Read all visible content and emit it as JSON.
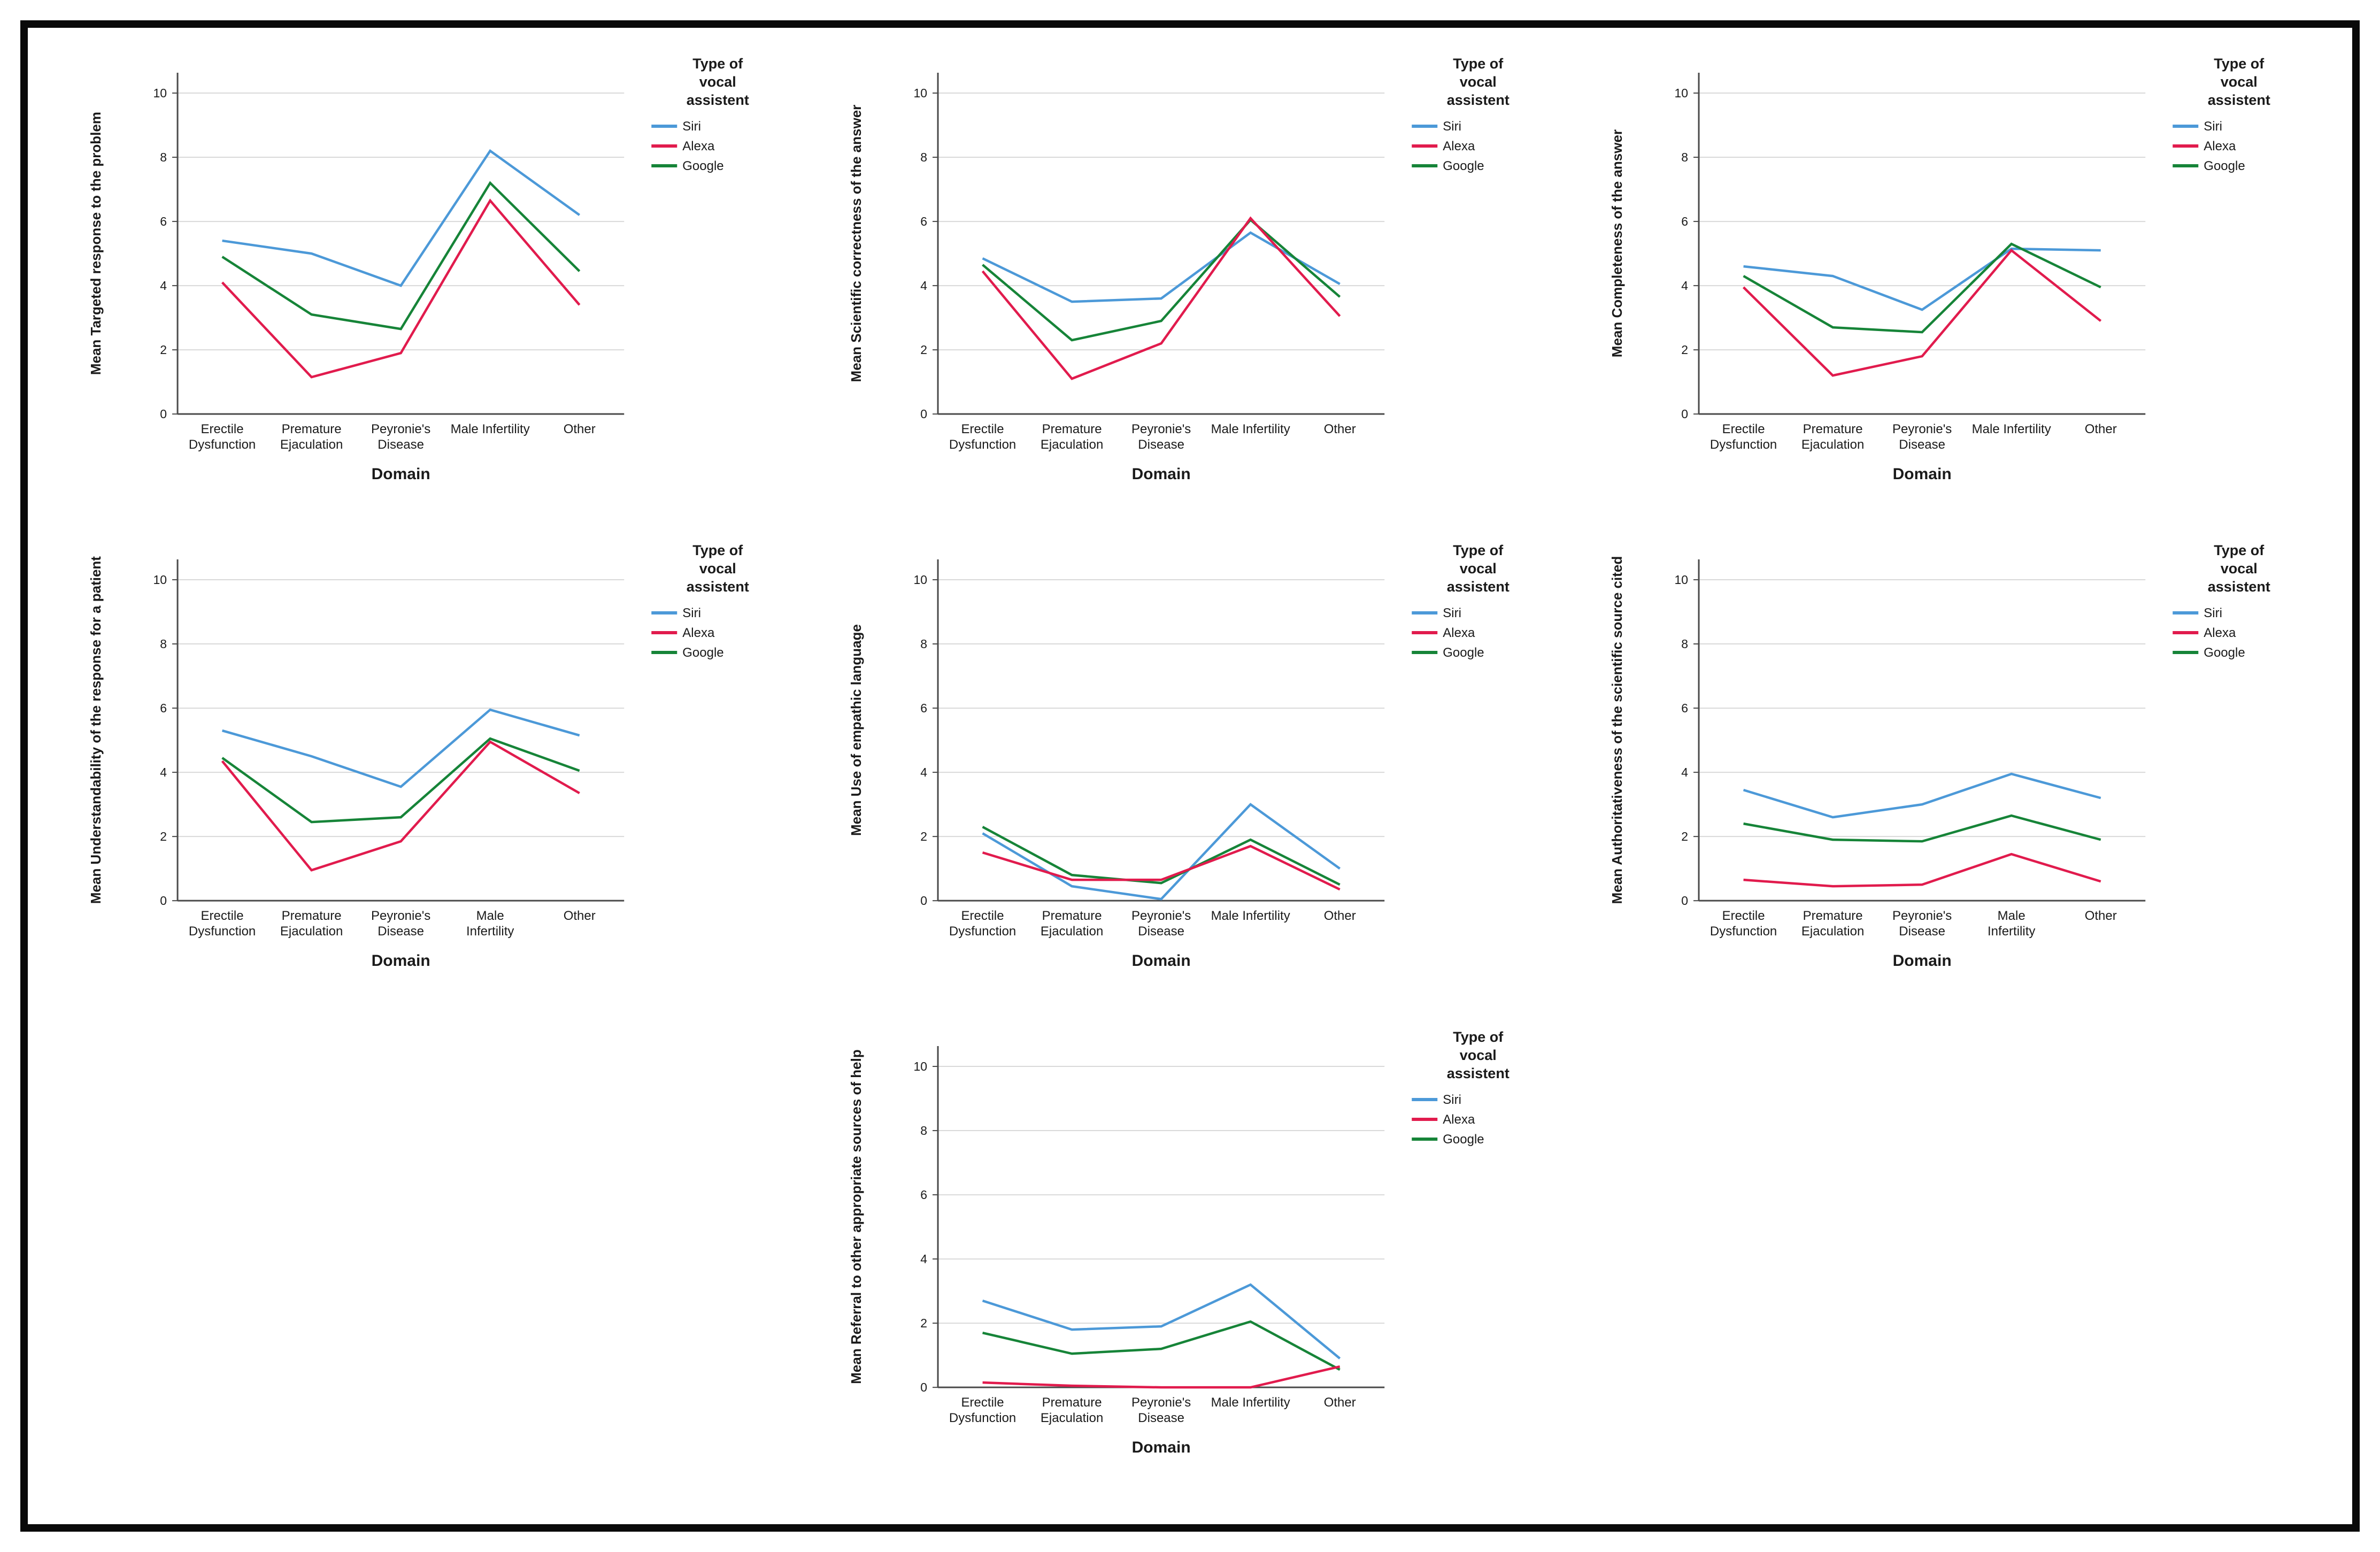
{
  "page": {
    "background": "#ffffff",
    "frame_color": "#0a0a0a",
    "grid_color": "#d9d9d9",
    "axis_color": "#4a4a4a"
  },
  "legend": {
    "title_lines": [
      "Type of",
      "vocal",
      "assistent"
    ],
    "position": "right",
    "entries": [
      {
        "label": "Siri",
        "color": "#4c99d8"
      },
      {
        "label": "Alexa",
        "color": "#e11b4d"
      },
      {
        "label": "Google",
        "color": "#168438"
      }
    ]
  },
  "chart_data": [
    {
      "type": "line",
      "id": "targeted-response",
      "ylabel": "Mean Targeted response to the problem",
      "xlabel": "Domain",
      "ylim": [
        0,
        11.2
      ],
      "yticks": [
        0,
        2,
        4,
        6,
        8,
        10
      ],
      "grid": true,
      "legend_position": "right",
      "categories": [
        "Erectile Dysfunction",
        "Premature Ejaculation",
        "Peyronie's Disease",
        "Male Infertility",
        "Other"
      ],
      "category_lines": [
        [
          "Erectile",
          "Dysfunction"
        ],
        [
          "Premature",
          "Ejaculation"
        ],
        [
          "Peyronie's",
          "Disease"
        ],
        [
          "Male Infertility"
        ],
        [
          "Other"
        ]
      ],
      "series": [
        {
          "name": "Siri",
          "color": "#4c99d8",
          "values": [
            5.4,
            5.0,
            4.0,
            8.2,
            6.2
          ]
        },
        {
          "name": "Alexa",
          "color": "#e11b4d",
          "values": [
            4.1,
            1.15,
            1.9,
            6.65,
            3.4
          ]
        },
        {
          "name": "Google",
          "color": "#168438",
          "values": [
            4.9,
            3.1,
            2.65,
            7.2,
            4.45
          ]
        }
      ]
    },
    {
      "type": "line",
      "id": "scientific-correctness",
      "ylabel": "Mean Scientific correctness of the answer",
      "xlabel": "Domain",
      "ylim": [
        0,
        11.2
      ],
      "yticks": [
        0,
        2,
        4,
        6,
        8,
        10
      ],
      "grid": true,
      "legend_position": "right",
      "categories": [
        "Erectile Dysfunction",
        "Premature Ejaculation",
        "Peyronie's Disease",
        "Male Infertility",
        "Other"
      ],
      "category_lines": [
        [
          "Erectile",
          "Dysfunction"
        ],
        [
          "Premature",
          "Ejaculation"
        ],
        [
          "Peyronie's",
          "Disease"
        ],
        [
          "Male Infertility"
        ],
        [
          "Other"
        ]
      ],
      "series": [
        {
          "name": "Siri",
          "color": "#4c99d8",
          "values": [
            4.85,
            3.5,
            3.6,
            5.65,
            4.05
          ]
        },
        {
          "name": "Alexa",
          "color": "#e11b4d",
          "values": [
            4.45,
            1.1,
            2.2,
            6.1,
            3.05
          ]
        },
        {
          "name": "Google",
          "color": "#168438",
          "values": [
            4.65,
            2.3,
            2.9,
            6.05,
            3.65
          ]
        }
      ]
    },
    {
      "type": "line",
      "id": "completeness",
      "ylabel": "Mean Completeness of the answer",
      "xlabel": "Domain",
      "ylim": [
        0,
        11.2
      ],
      "yticks": [
        0,
        2,
        4,
        6,
        8,
        10
      ],
      "grid": true,
      "legend_position": "right",
      "categories": [
        "Erectile Dysfunction",
        "Premature Ejaculation",
        "Peyronie's Disease",
        "Male Infertility",
        "Other"
      ],
      "category_lines": [
        [
          "Erectile",
          "Dysfunction"
        ],
        [
          "Premature",
          "Ejaculation"
        ],
        [
          "Peyronie's",
          "Disease"
        ],
        [
          "Male Infertility"
        ],
        [
          "Other"
        ]
      ],
      "series": [
        {
          "name": "Siri",
          "color": "#4c99d8",
          "values": [
            4.6,
            4.3,
            3.25,
            5.15,
            5.1
          ]
        },
        {
          "name": "Alexa",
          "color": "#e11b4d",
          "values": [
            3.95,
            1.2,
            1.8,
            5.1,
            2.9
          ]
        },
        {
          "name": "Google",
          "color": "#168438",
          "values": [
            4.3,
            2.7,
            2.55,
            5.3,
            3.95
          ]
        }
      ]
    },
    {
      "type": "line",
      "id": "understandability",
      "ylabel": "Mean Understandability of the response for a patient",
      "xlabel": "Domain",
      "ylim": [
        0,
        11.2
      ],
      "yticks": [
        0,
        2,
        4,
        6,
        8,
        10
      ],
      "grid": true,
      "legend_position": "right",
      "categories": [
        "Erectile Dysfunction",
        "Premature Ejaculation",
        "Peyronie's Disease",
        "Male Infertility",
        "Other"
      ],
      "category_lines": [
        [
          "Erectile",
          "Dysfunction"
        ],
        [
          "Premature",
          "Ejaculation"
        ],
        [
          "Peyronie's",
          "Disease"
        ],
        [
          "Male",
          "Infertility"
        ],
        [
          "Other"
        ]
      ],
      "series": [
        {
          "name": "Siri",
          "color": "#4c99d8",
          "values": [
            5.3,
            4.5,
            3.55,
            5.95,
            5.15
          ]
        },
        {
          "name": "Alexa",
          "color": "#e11b4d",
          "values": [
            4.35,
            0.95,
            1.85,
            4.95,
            3.35
          ]
        },
        {
          "name": "Google",
          "color": "#168438",
          "values": [
            4.45,
            2.45,
            2.6,
            5.05,
            4.05
          ]
        }
      ]
    },
    {
      "type": "line",
      "id": "empathic-language",
      "ylabel": "Mean Use of empathic language",
      "xlabel": "Domain",
      "ylim": [
        0,
        11.2
      ],
      "yticks": [
        0,
        2,
        4,
        6,
        8,
        10
      ],
      "grid": true,
      "legend_position": "right",
      "categories": [
        "Erectile Dysfunction",
        "Premature Ejaculation",
        "Peyronie's Disease",
        "Male Infertility",
        "Other"
      ],
      "category_lines": [
        [
          "Erectile",
          "Dysfunction"
        ],
        [
          "Premature",
          "Ejaculation"
        ],
        [
          "Peyronie's",
          "Disease"
        ],
        [
          "Male Infertility"
        ],
        [
          "Other"
        ]
      ],
      "series": [
        {
          "name": "Siri",
          "color": "#4c99d8",
          "values": [
            2.1,
            0.45,
            0.05,
            3.0,
            1.0
          ]
        },
        {
          "name": "Alexa",
          "color": "#e11b4d",
          "values": [
            1.5,
            0.65,
            0.65,
            1.7,
            0.35
          ]
        },
        {
          "name": "Google",
          "color": "#168438",
          "values": [
            2.3,
            0.8,
            0.55,
            1.9,
            0.5
          ]
        }
      ]
    },
    {
      "type": "line",
      "id": "authoritativeness",
      "ylabel": "Mean Authoritativeness of the scientific source cited",
      "xlabel": "Domain",
      "ylim": [
        0,
        11.2
      ],
      "yticks": [
        0,
        2,
        4,
        6,
        8,
        10
      ],
      "grid": true,
      "legend_position": "right",
      "categories": [
        "Erectile Dysfunction",
        "Premature Ejaculation",
        "Peyronie's Disease",
        "Male Infertility",
        "Other"
      ],
      "category_lines": [
        [
          "Erectile",
          "Dysfunction"
        ],
        [
          "Premature",
          "Ejaculation"
        ],
        [
          "Peyronie's",
          "Disease"
        ],
        [
          "Male",
          "Infertility"
        ],
        [
          "Other"
        ]
      ],
      "series": [
        {
          "name": "Siri",
          "color": "#4c99d8",
          "values": [
            3.45,
            2.6,
            3.0,
            3.95,
            3.2
          ]
        },
        {
          "name": "Alexa",
          "color": "#e11b4d",
          "values": [
            0.65,
            0.45,
            0.5,
            1.45,
            0.6
          ]
        },
        {
          "name": "Google",
          "color": "#168438",
          "values": [
            2.4,
            1.9,
            1.85,
            2.65,
            1.9
          ]
        }
      ]
    },
    {
      "type": "line",
      "id": "referral",
      "ylabel": "Mean Referral to other appropriate sources of help",
      "xlabel": "Domain",
      "ylim": [
        0,
        11.2
      ],
      "yticks": [
        0,
        2,
        4,
        6,
        8,
        10
      ],
      "grid": true,
      "legend_position": "right",
      "categories": [
        "Erectile Dysfunction",
        "Premature Ejaculation",
        "Peyronie's Disease",
        "Male Infertility",
        "Other"
      ],
      "category_lines": [
        [
          "Erectile",
          "Dysfunction"
        ],
        [
          "Premature",
          "Ejaculation"
        ],
        [
          "Peyronie's",
          "Disease"
        ],
        [
          "Male Infertility"
        ],
        [
          "Other"
        ]
      ],
      "series": [
        {
          "name": "Siri",
          "color": "#4c99d8",
          "values": [
            2.7,
            1.8,
            1.9,
            3.2,
            0.9
          ]
        },
        {
          "name": "Alexa",
          "color": "#e11b4d",
          "values": [
            0.15,
            0.05,
            0.0,
            0.0,
            0.65
          ]
        },
        {
          "name": "Google",
          "color": "#168438",
          "values": [
            1.7,
            1.05,
            1.2,
            2.05,
            0.55
          ]
        }
      ]
    }
  ]
}
